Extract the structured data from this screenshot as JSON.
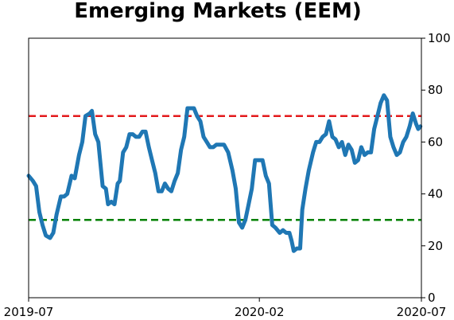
{
  "chart_data": {
    "type": "line",
    "title": "Emerging Markets (EEM)",
    "xlabel": "",
    "ylabel": "",
    "y_axis_side": "right",
    "ylim": [
      0,
      100
    ],
    "yticks": [
      0,
      20,
      40,
      60,
      80,
      100
    ],
    "xlim": [
      "2019-07-01",
      "2020-07-01"
    ],
    "xticks": [
      {
        "label": "2019-07",
        "date": "2019-07-01"
      },
      {
        "label": "2020-02",
        "date": "2020-02-01"
      },
      {
        "label": "2020-07",
        "date": "2020-07-01"
      }
    ],
    "grid": false,
    "legend": "none",
    "reference_lines": [
      {
        "y": 70,
        "color": "#e31a1c",
        "style": "dashed"
      },
      {
        "y": 30,
        "color": "#008000",
        "style": "dashed"
      }
    ],
    "series": [
      {
        "color": "#1f77b4",
        "points": [
          [
            "2019-07-01",
            47
          ],
          [
            "2019-07-05",
            45
          ],
          [
            "2019-07-08",
            43
          ],
          [
            "2019-07-11",
            33
          ],
          [
            "2019-07-14",
            28
          ],
          [
            "2019-07-17",
            24
          ],
          [
            "2019-07-21",
            23
          ],
          [
            "2019-07-24",
            25
          ],
          [
            "2019-07-27",
            32
          ],
          [
            "2019-07-31",
            39
          ],
          [
            "2019-08-03",
            39
          ],
          [
            "2019-08-06",
            40
          ],
          [
            "2019-08-10",
            47
          ],
          [
            "2019-08-13",
            46
          ],
          [
            "2019-08-17",
            55
          ],
          [
            "2019-08-20",
            60
          ],
          [
            "2019-08-23",
            70
          ],
          [
            "2019-08-27",
            71
          ],
          [
            "2019-08-29",
            72
          ],
          [
            "2019-09-01",
            63
          ],
          [
            "2019-09-04",
            60
          ],
          [
            "2019-09-08",
            43
          ],
          [
            "2019-09-11",
            42
          ],
          [
            "2019-09-13",
            36
          ],
          [
            "2019-09-16",
            37
          ],
          [
            "2019-09-19",
            36
          ],
          [
            "2019-09-22",
            44
          ],
          [
            "2019-09-24",
            45
          ],
          [
            "2019-09-27",
            56
          ],
          [
            "2019-09-30",
            58
          ],
          [
            "2019-10-03",
            63
          ],
          [
            "2019-10-06",
            63
          ],
          [
            "2019-10-09",
            62
          ],
          [
            "2019-10-12",
            62
          ],
          [
            "2019-10-15",
            64
          ],
          [
            "2019-10-18",
            64
          ],
          [
            "2019-10-21",
            58
          ],
          [
            "2019-10-24",
            53
          ],
          [
            "2019-10-27",
            48
          ],
          [
            "2019-10-30",
            41
          ],
          [
            "2019-11-02",
            41
          ],
          [
            "2019-11-05",
            44
          ],
          [
            "2019-11-08",
            42
          ],
          [
            "2019-11-11",
            41
          ],
          [
            "2019-11-14",
            45
          ],
          [
            "2019-11-17",
            48
          ],
          [
            "2019-11-20",
            57
          ],
          [
            "2019-11-23",
            62
          ],
          [
            "2019-11-26",
            73
          ],
          [
            "2019-11-29",
            73
          ],
          [
            "2019-12-02",
            73
          ],
          [
            "2019-12-05",
            70
          ],
          [
            "2019-12-08",
            68
          ],
          [
            "2019-12-11",
            62
          ],
          [
            "2019-12-14",
            60
          ],
          [
            "2019-12-17",
            58
          ],
          [
            "2019-12-20",
            58
          ],
          [
            "2019-12-23",
            59
          ],
          [
            "2019-12-26",
            59
          ],
          [
            "2019-12-30",
            59
          ],
          [
            "2020-01-03",
            56
          ],
          [
            "2020-01-07",
            49
          ],
          [
            "2020-01-10",
            42
          ],
          [
            "2020-01-13",
            29
          ],
          [
            "2020-01-16",
            27
          ],
          [
            "2020-01-19",
            30
          ],
          [
            "2020-01-22",
            36
          ],
          [
            "2020-01-25",
            42
          ],
          [
            "2020-01-28",
            53
          ],
          [
            "2020-02-01",
            53
          ],
          [
            "2020-02-04",
            53
          ],
          [
            "2020-02-07",
            47
          ],
          [
            "2020-02-10",
            44
          ],
          [
            "2020-02-13",
            28
          ],
          [
            "2020-02-16",
            27
          ],
          [
            "2020-02-20",
            25
          ],
          [
            "2020-02-23",
            26
          ],
          [
            "2020-02-26",
            25
          ],
          [
            "2020-02-29",
            25
          ],
          [
            "2020-03-02",
            22
          ],
          [
            "2020-03-04",
            18
          ],
          [
            "2020-03-07",
            19
          ],
          [
            "2020-03-10",
            19
          ],
          [
            "2020-03-12",
            34
          ],
          [
            "2020-03-15",
            42
          ],
          [
            "2020-03-18",
            49
          ],
          [
            "2020-03-22",
            56
          ],
          [
            "2020-03-25",
            60
          ],
          [
            "2020-03-28",
            60
          ],
          [
            "2020-03-31",
            62
          ],
          [
            "2020-04-03",
            63
          ],
          [
            "2020-04-06",
            68
          ],
          [
            "2020-04-09",
            62
          ],
          [
            "2020-04-12",
            61
          ],
          [
            "2020-04-15",
            58
          ],
          [
            "2020-04-18",
            60
          ],
          [
            "2020-04-21",
            55
          ],
          [
            "2020-04-24",
            59
          ],
          [
            "2020-04-27",
            57
          ],
          [
            "2020-04-30",
            52
          ],
          [
            "2020-05-03",
            53
          ],
          [
            "2020-05-06",
            58
          ],
          [
            "2020-05-09",
            55
          ],
          [
            "2020-05-12",
            56
          ],
          [
            "2020-05-15",
            56
          ],
          [
            "2020-05-18",
            65
          ],
          [
            "2020-05-21",
            70
          ],
          [
            "2020-05-24",
            75
          ],
          [
            "2020-05-27",
            78
          ],
          [
            "2020-05-30",
            76
          ],
          [
            "2020-06-02",
            62
          ],
          [
            "2020-06-05",
            58
          ],
          [
            "2020-06-08",
            55
          ],
          [
            "2020-06-11",
            56
          ],
          [
            "2020-06-14",
            60
          ],
          [
            "2020-06-17",
            62
          ],
          [
            "2020-06-20",
            66
          ],
          [
            "2020-06-23",
            71
          ],
          [
            "2020-06-26",
            67
          ],
          [
            "2020-06-28",
            65
          ],
          [
            "2020-06-30",
            66
          ]
        ]
      }
    ]
  }
}
